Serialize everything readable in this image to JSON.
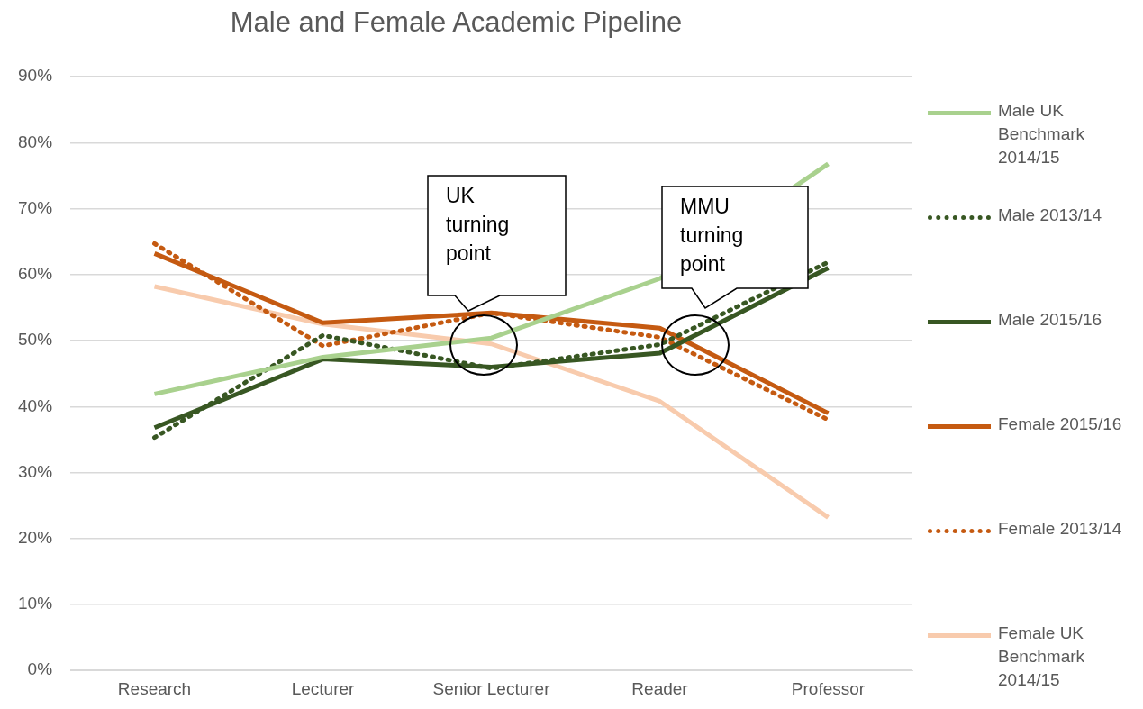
{
  "chart_data": {
    "type": "line",
    "title": "Male and Female Academic Pipeline",
    "categories": [
      "Research",
      "Lecturer",
      "Senior Lecturer",
      "Reader",
      "Professor"
    ],
    "series": [
      {
        "name": "Male  UK Benchmark 2014/15",
        "color": "#a9d18e",
        "line_style": "solid",
        "values": [
          41.9,
          47.5,
          50.4,
          59.4,
          76.8
        ]
      },
      {
        "name": "Male  2013/14",
        "color": "#385723",
        "line_style": "dotted",
        "values": [
          35.3,
          50.8,
          45.8,
          49.4,
          61.9
        ]
      },
      {
        "name": "Male  2015/16",
        "color": "#385723",
        "line_style": "solid",
        "values": [
          36.8,
          47.2,
          46,
          48.1,
          61
        ]
      },
      {
        "name": "Female 2015/16",
        "color": "#c55a11",
        "line_style": "solid",
        "values": [
          63.2,
          52.7,
          54.2,
          51.9,
          39
        ]
      },
      {
        "name": "Female 2013/14",
        "color": "#c55a11",
        "line_style": "dotted",
        "values": [
          64.7,
          49.2,
          54.2,
          50.5,
          38
        ]
      },
      {
        "name": "Female  UK Benchmark 2014/15",
        "color": "#f8cbad",
        "line_style": "solid",
        "values": [
          58.2,
          52.5,
          49.5,
          40.8,
          23.2
        ]
      }
    ],
    "ylim": [
      0,
      90
    ],
    "yticks": [
      {
        "value": 0,
        "label": "0%"
      },
      {
        "value": 10,
        "label": "10%"
      },
      {
        "value": 20,
        "label": "20%"
      },
      {
        "value": 30,
        "label": "30%"
      },
      {
        "value": 40,
        "label": "40%"
      },
      {
        "value": 50,
        "label": "50%"
      },
      {
        "value": 60,
        "label": "60%"
      },
      {
        "value": 70,
        "label": "70%"
      },
      {
        "value": 80,
        "label": "80%"
      },
      {
        "value": 90,
        "label": "90%"
      }
    ],
    "grid": "y",
    "legend": "right",
    "marker": "none",
    "annotations": [
      "UK turning point",
      "MMU turning point"
    ]
  }
}
